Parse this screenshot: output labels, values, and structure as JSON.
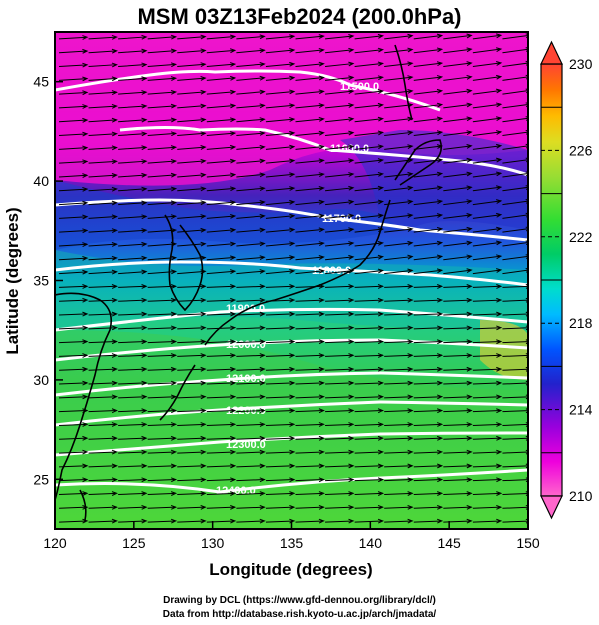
{
  "title": "MSM 03Z13Feb2024 (200.0hPa)",
  "x_axis": {
    "label": "Longitude (degrees)",
    "ticks": [
      "120",
      "125",
      "130",
      "135",
      "140",
      "145",
      "150"
    ],
    "range": [
      120,
      150
    ]
  },
  "y_axis": {
    "label": "Latitude  (degrees)",
    "ticks": [
      "25",
      "30",
      "35",
      "40",
      "45"
    ],
    "range": [
      22.5,
      47.5
    ]
  },
  "colorbar": {
    "range": [
      210,
      230
    ],
    "tick_labels": [
      "210",
      "214",
      "218",
      "222",
      "226",
      "230"
    ],
    "colors": [
      "#ff66cc",
      "#ee00dd",
      "#9900dd",
      "#2222cc",
      "#0055ff",
      "#00bbff",
      "#00ddcc",
      "#00cc66",
      "#33dd33",
      "#99dd33",
      "#dddd22",
      "#ffbb00",
      "#ff7700",
      "#ff4433"
    ]
  },
  "contours": [
    {
      "label": "11500.0"
    },
    {
      "label": "11600.0"
    },
    {
      "label": "11700.0"
    },
    {
      "label": "11800.0"
    },
    {
      "label": "11900.0"
    },
    {
      "label": "12000.0"
    },
    {
      "label": "12100.0"
    },
    {
      "label": "12200.0"
    },
    {
      "label": "12300.0"
    },
    {
      "label": "12400.0"
    }
  ],
  "credits": {
    "line1": "Drawing by DCL (https://www.gfd-dennou.org/library/dcl/)",
    "line2": "Data from http://database.rish.kyoto-u.ac.jp/arch/jmadata/"
  },
  "colors": {
    "contour": "#ffffff",
    "vector": "#000000",
    "coast": "#000000"
  }
}
